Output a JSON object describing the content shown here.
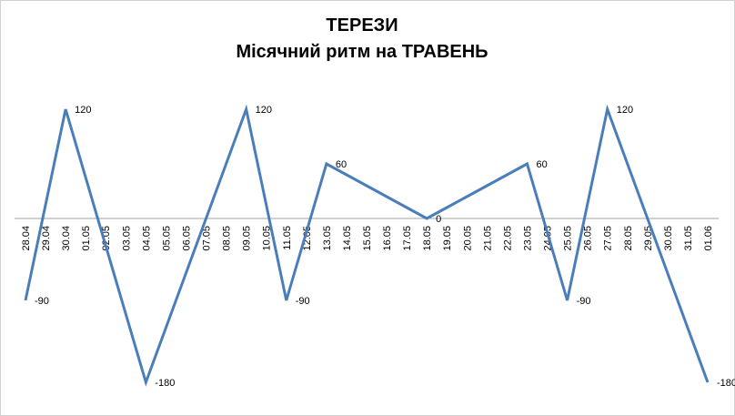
{
  "chart_data": {
    "type": "line",
    "title": "ТЕРЕЗИ",
    "subtitle": "Місячний ритм на ТРАВЕНЬ",
    "categories": [
      "28.04",
      "29.04",
      "30.04",
      "01.05",
      "02.05",
      "03.05",
      "04.05",
      "05.05",
      "06.05",
      "07.05",
      "08.05",
      "09.05",
      "10.05",
      "11.05",
      "12.05",
      "13.05",
      "14.05",
      "15.05",
      "16.05",
      "17.05",
      "18.05",
      "19.05",
      "20.05",
      "21.05",
      "22.05",
      "23.05",
      "24.05",
      "25.05",
      "26.05",
      "27.05",
      "28.05",
      "29.05",
      "30.05",
      "31.05",
      "01.06"
    ],
    "values": [
      -90,
      15,
      120,
      45,
      -30,
      -105,
      -180,
      -120,
      -60,
      0,
      60,
      120,
      15,
      -90,
      -15,
      60,
      48,
      36,
      24,
      12,
      0,
      12,
      24,
      36,
      48,
      60,
      -15,
      -90,
      15,
      120,
      60,
      0,
      -60,
      -120,
      -180
    ],
    "value_labels": [
      -90,
      null,
      120,
      null,
      null,
      null,
      -180,
      null,
      null,
      null,
      null,
      120,
      null,
      -90,
      null,
      60,
      null,
      null,
      null,
      null,
      0,
      null,
      null,
      null,
      null,
      60,
      null,
      -90,
      null,
      120,
      null,
      null,
      null,
      null,
      -180
    ],
    "color": "#4a7ebb",
    "ylim": [
      -210,
      150
    ]
  }
}
